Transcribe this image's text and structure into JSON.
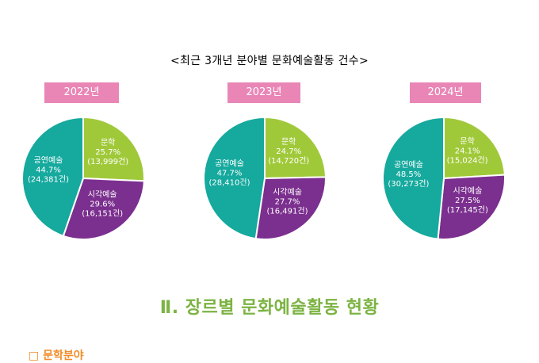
{
  "chart_title": "<최근 3개년 분야별 문화예술활동 건수>",
  "colors": {
    "문학": "#a0c93a",
    "시각예술": "#7b2f8e",
    "공연예술": "#16a99e",
    "badge": "#e986b6",
    "section_title": "#7cb342"
  },
  "chart_data": [
    {
      "type": "pie",
      "title": "2022년",
      "slices": [
        {
          "label": "문학",
          "pct": 25.7,
          "pct_text": "25.7%",
          "count_text": "(13,999건)",
          "count": 13999
        },
        {
          "label": "시각예술",
          "pct": 29.6,
          "pct_text": "29.6%",
          "count_text": "(16,151건)",
          "count": 16151
        },
        {
          "label": "공연예술",
          "pct": 44.7,
          "pct_text": "44.7%",
          "count_text": "(24,381건)",
          "count": 24381
        }
      ]
    },
    {
      "type": "pie",
      "title": "2023년",
      "slices": [
        {
          "label": "문학",
          "pct": 24.7,
          "pct_text": "24.7%",
          "count_text": "(14,720건)",
          "count": 14720
        },
        {
          "label": "시각예술",
          "pct": 27.7,
          "pct_text": "27.7%",
          "count_text": "(16,491건)",
          "count": 16491
        },
        {
          "label": "공연예술",
          "pct": 47.7,
          "pct_text": "47.7%",
          "count_text": "(28,410건)",
          "count": 28410
        }
      ]
    },
    {
      "type": "pie",
      "title": "2024년",
      "slices": [
        {
          "label": "문학",
          "pct": 24.1,
          "pct_text": "24.1%",
          "count_text": "(15,024건)",
          "count": 15024
        },
        {
          "label": "시각예술",
          "pct": 27.5,
          "pct_text": "27.5%",
          "count_text": "(17,145건)",
          "count": 17145
        },
        {
          "label": "공연예술",
          "pct": 48.5,
          "pct_text": "48.5%",
          "count_text": "(30,273건)",
          "count": 30273
        }
      ]
    }
  ],
  "section_title": "Ⅱ. 장르별 문화예술활동 현황",
  "cut_heading": "□ 문학분야"
}
